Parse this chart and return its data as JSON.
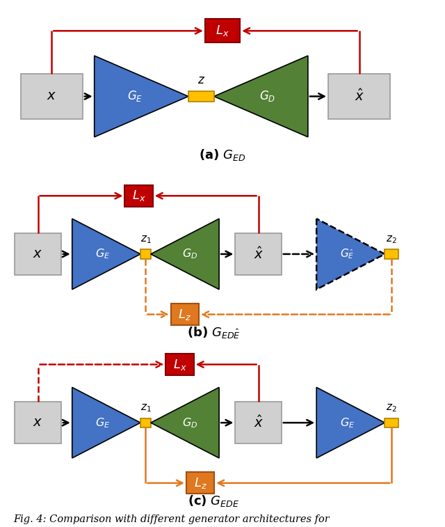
{
  "bg_color": "#ffffff",
  "gray_box_color": "#d0d0d0",
  "blue_tri_color": "#4472c4",
  "green_tri_color": "#538135",
  "red_box_color": "#c00000",
  "orange_box_color": "#e07820",
  "gold_bar_color": "#ffc000",
  "red_arrow_color": "#c00000",
  "orange_arrow_color": "#e07820",
  "black_arrow_color": "#000000",
  "caption": "Fig. 4: Comparison with different generator architectures for",
  "caption_fontsize": 10.5
}
